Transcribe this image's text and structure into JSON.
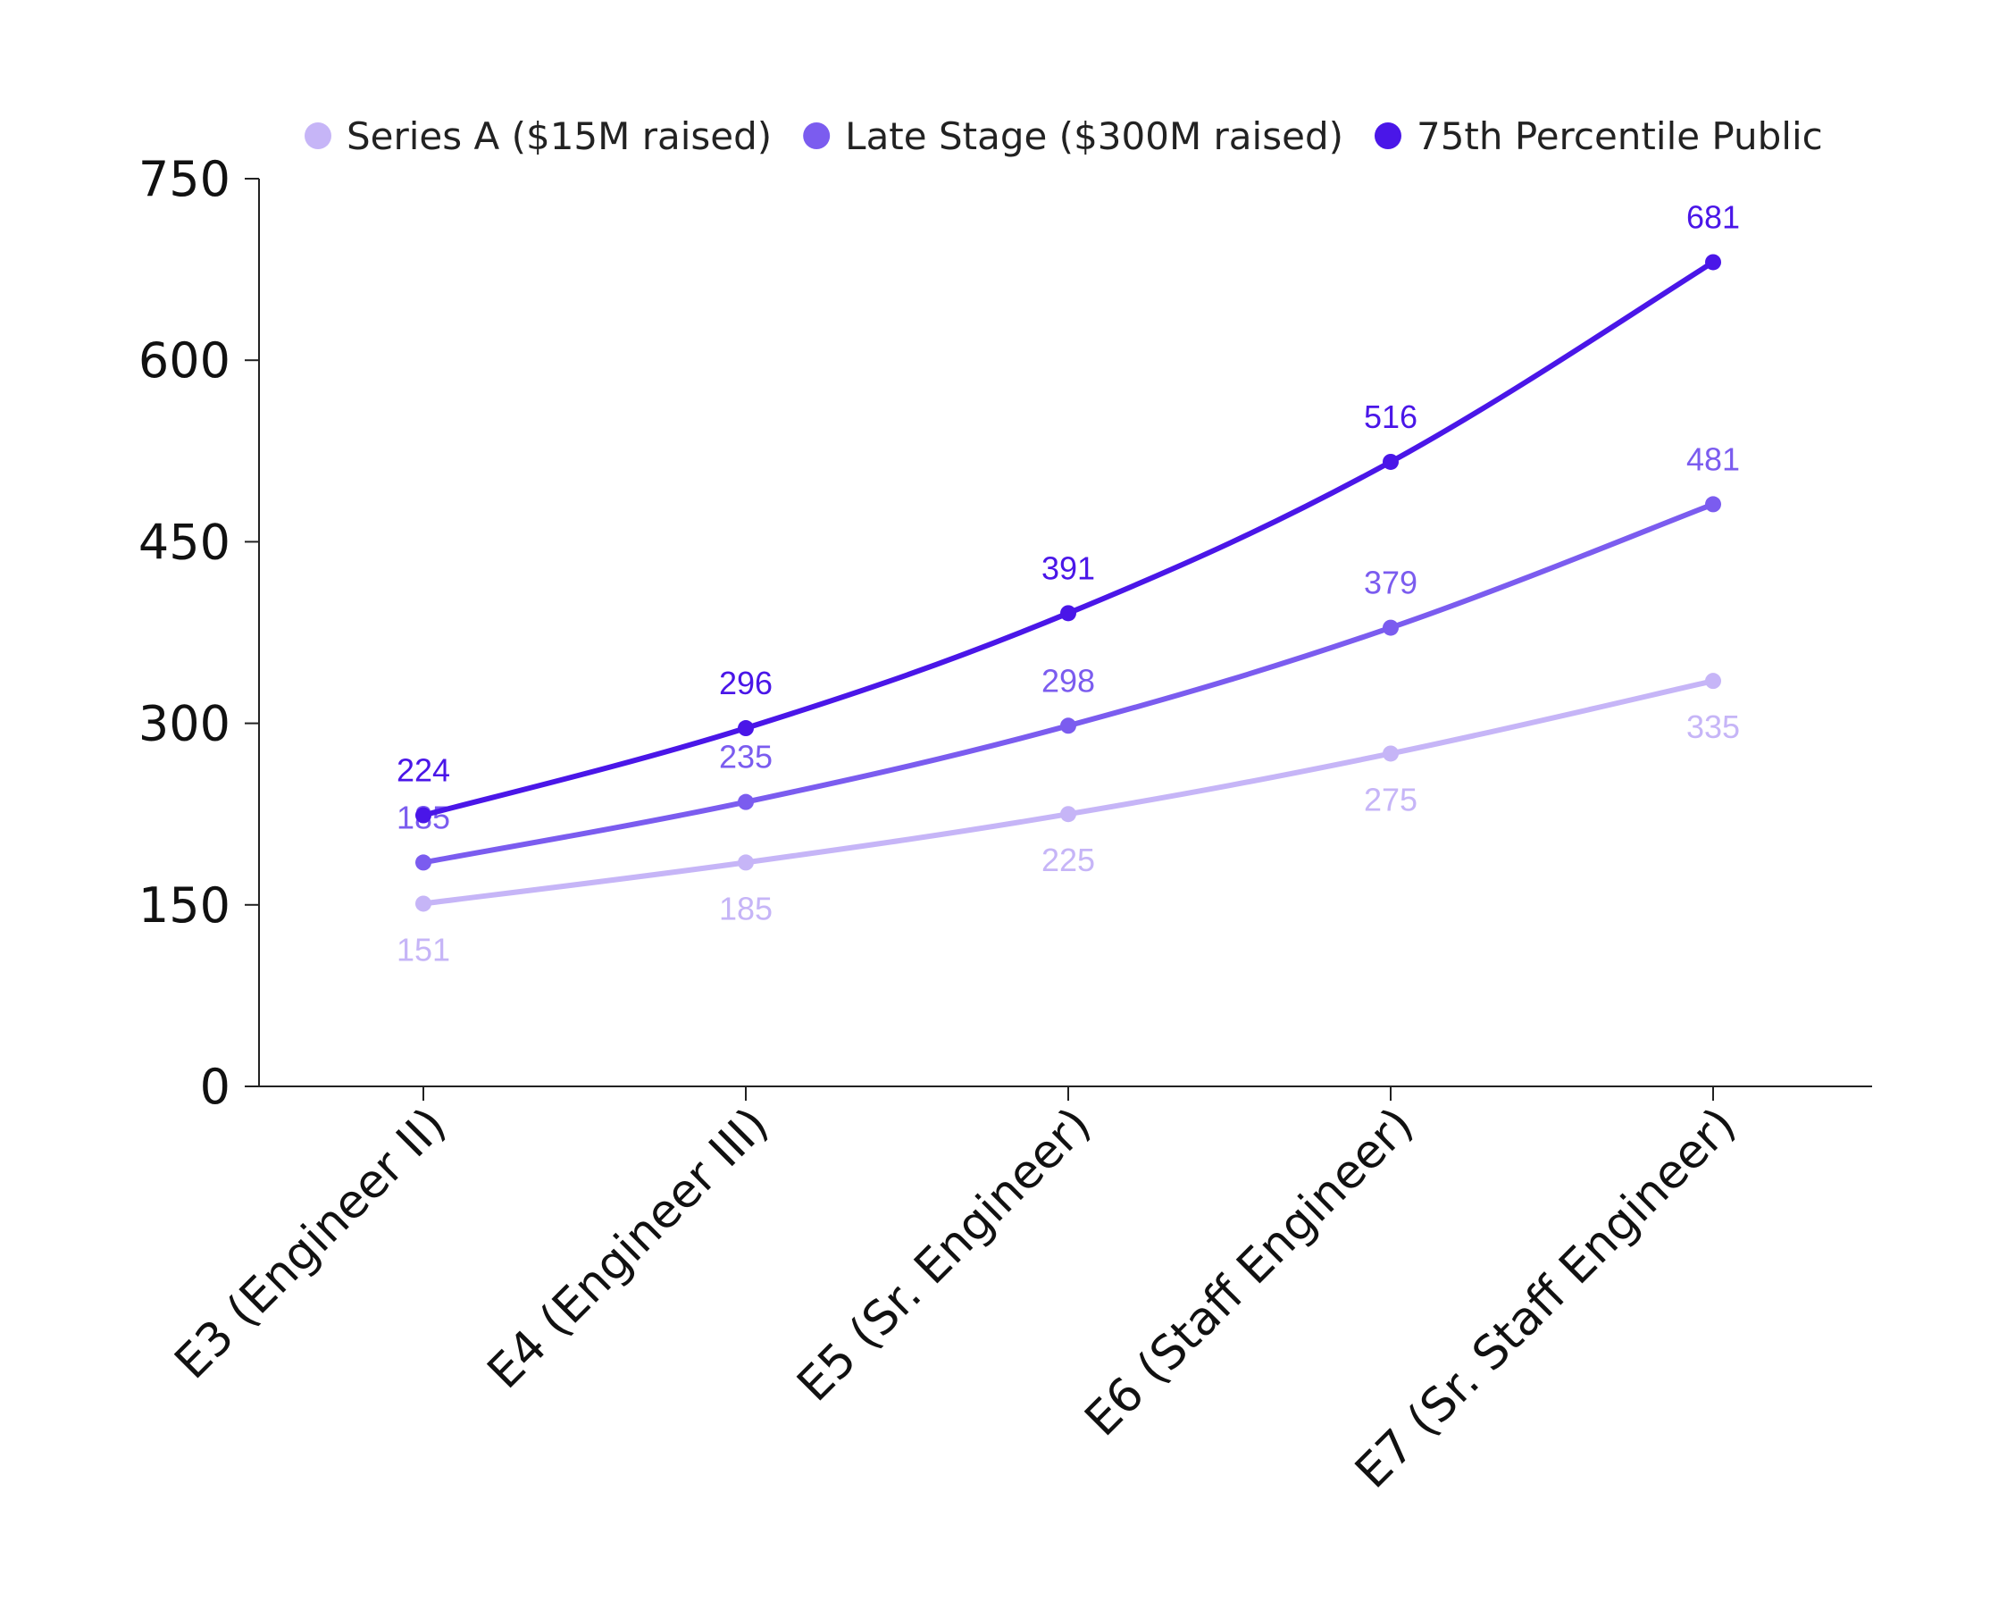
{
  "chart_data": {
    "type": "line",
    "title": "",
    "xlabel": "",
    "ylabel": "",
    "categories": [
      "E3 (Engineer II)",
      "E4 (Engineer III)",
      "E5 (Sr. Engineer)",
      "E6 (Staff Engineer)",
      "E7 (Sr. Staff Engineer)"
    ],
    "ylim": [
      0,
      750
    ],
    "yticks": [
      "0",
      "150",
      "300",
      "450",
      "600",
      "750"
    ],
    "grid": false,
    "legend_position": "top",
    "data_labels": true,
    "series": [
      {
        "name": "Series A ($15M raised)",
        "values": [
          151,
          185,
          225,
          275,
          335
        ],
        "color": "#c6b5f7",
        "label_placement": "below"
      },
      {
        "name": "Late Stage ($300M raised)",
        "values": [
          185,
          235,
          298,
          379,
          481
        ],
        "color": "#7b5cef",
        "label_placement": "above"
      },
      {
        "name": "75th Percentile Public",
        "values": [
          224,
          296,
          391,
          516,
          681
        ],
        "color": "#4a16e8",
        "label_placement": "above"
      }
    ]
  }
}
